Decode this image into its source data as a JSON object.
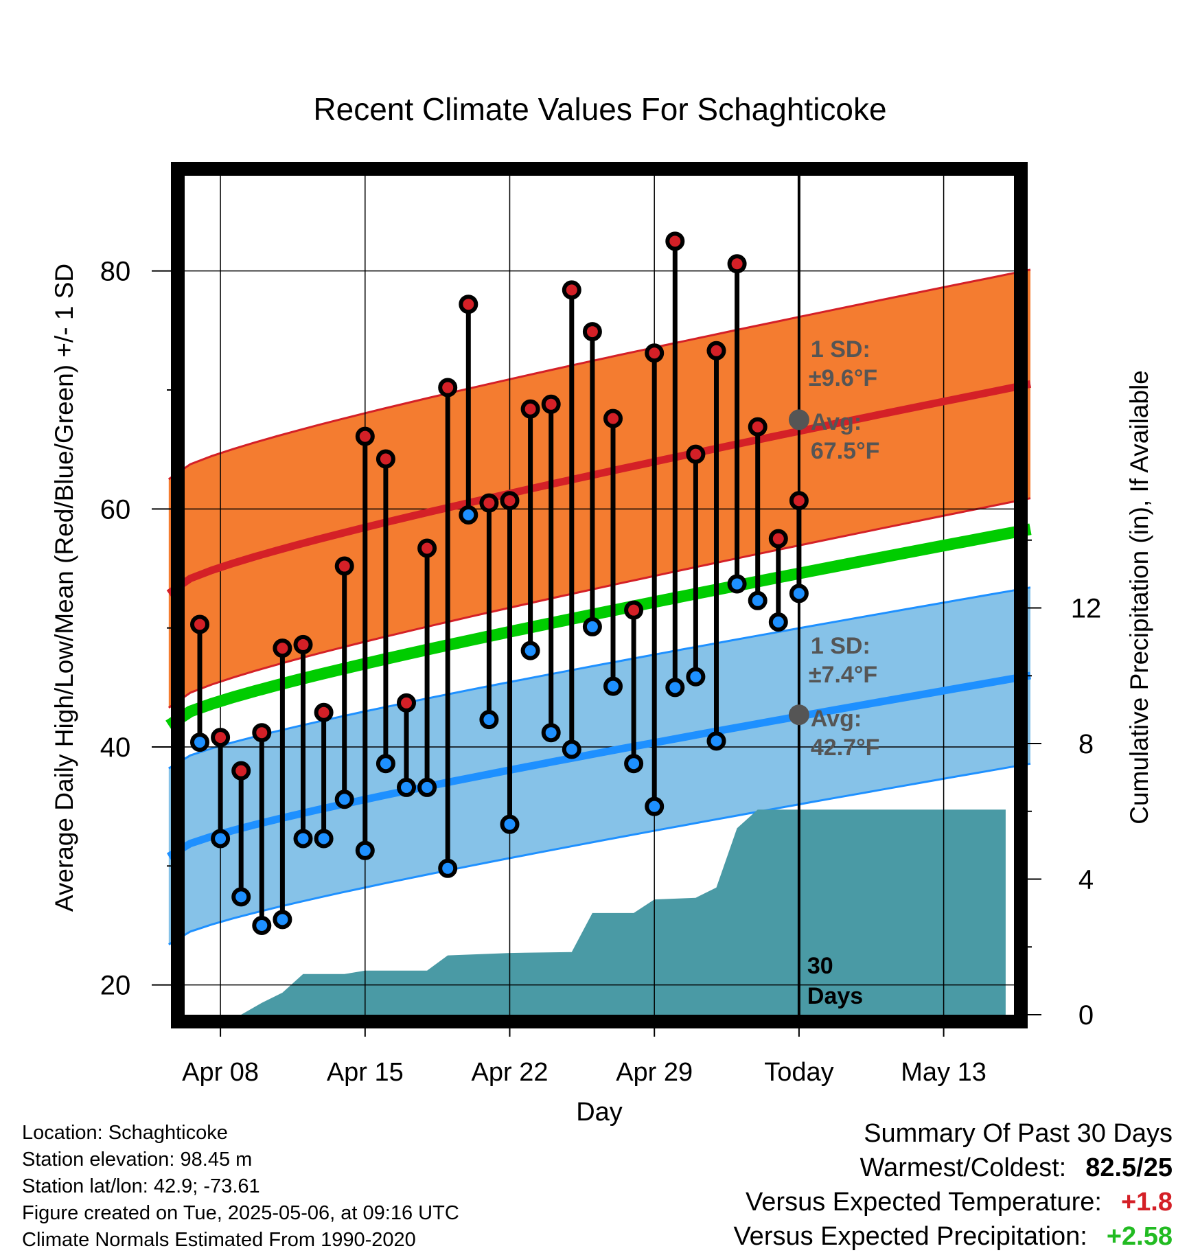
{
  "chart_data": {
    "type": "line",
    "title": "Recent Climate Values For Schaghticoke",
    "xlabel": "Day",
    "ylabel": "Average Daily High/Low/Mean (Red/Blue/Green) +/- 1 SD",
    "y2label": "Cumulative Precipitation (in), If Available",
    "x_ticks": [
      "Apr 08",
      "Apr 15",
      "Apr 22",
      "Apr 29",
      "Today",
      "May 13"
    ],
    "y_ticks": [
      "20",
      "40",
      "60",
      "80"
    ],
    "y2_ticks": [
      "0",
      "4",
      "8",
      "12"
    ],
    "ylim": [
      17.5,
      88
    ],
    "y2lim": [
      0,
      24.75
    ],
    "dates": [
      "Apr 07",
      "Apr 08",
      "Apr 09",
      "Apr 10",
      "Apr 11",
      "Apr 12",
      "Apr 13",
      "Apr 14",
      "Apr 15",
      "Apr 16",
      "Apr 17",
      "Apr 18",
      "Apr 19",
      "Apr 20",
      "Apr 21",
      "Apr 22",
      "Apr 23",
      "Apr 24",
      "Apr 25",
      "Apr 26",
      "Apr 27",
      "Apr 28",
      "Apr 29",
      "Apr 30",
      "May 01",
      "May 02",
      "May 03",
      "May 04",
      "May 05",
      "May 06"
    ],
    "daily_high": [
      50.3,
      40.8,
      38.0,
      41.2,
      48.3,
      48.6,
      42.9,
      55.2,
      66.1,
      64.2,
      43.7,
      56.7,
      70.2,
      77.2,
      60.5,
      60.7,
      68.4,
      68.8,
      78.4,
      74.9,
      67.6,
      51.5,
      73.1,
      82.5,
      64.6,
      73.3,
      80.6,
      66.9,
      57.5,
      60.7
    ],
    "daily_low": [
      40.4,
      32.3,
      27.4,
      25.0,
      25.5,
      32.3,
      32.3,
      35.6,
      31.3,
      38.6,
      36.6,
      36.6,
      29.8,
      59.5,
      42.3,
      33.5,
      48.1,
      41.2,
      39.8,
      50.1,
      45.1,
      38.6,
      35.0,
      45.0,
      45.9,
      40.5,
      53.7,
      52.3,
      50.5,
      52.9
    ],
    "normal_high_avg": [
      52.9,
      70.5
    ],
    "normal_high_sd": 9.6,
    "normal_low_avg": [
      30.8,
      46.0
    ],
    "normal_low_sd": 7.4,
    "normal_mean": [
      41.8,
      58.3
    ],
    "today_high_avg": 67.5,
    "today_low_avg": 42.7,
    "precip_dates": [
      "Apr 09",
      "Apr 10",
      "Apr 11",
      "Apr 12",
      "Apr 13",
      "Apr 14",
      "Apr 15",
      "Apr 18",
      "Apr 19",
      "Apr 22",
      "Apr 25",
      "Apr 26",
      "Apr 28",
      "Apr 29",
      "May 01",
      "May 02",
      "May 03",
      "May 04",
      "May 05",
      "May 06",
      "May 16"
    ],
    "precip_cumulative": [
      0.0,
      0.35,
      0.65,
      1.2,
      1.2,
      1.2,
      1.3,
      1.3,
      1.75,
      1.82,
      1.85,
      3.0,
      3.0,
      3.4,
      3.45,
      3.75,
      5.5,
      6.05,
      6.05,
      6.05,
      6.05
    ],
    "annotations": {
      "high_sd": "1 SD:",
      "high_sd_val": "±9.6°F",
      "high_avg": "Avg:",
      "high_avg_val": "67.5°F",
      "low_sd": "1 SD:",
      "low_sd_val": "±7.4°F",
      "low_avg": "Avg:",
      "low_avg_val": "42.7°F",
      "days_num": "30",
      "days_word": "Days"
    },
    "colors": {
      "high_band": "#f47c30",
      "high_line": "#d42027",
      "low_band": "#86c2e8",
      "low_line": "#1e90ff",
      "mean_line": "#00cc00",
      "precip": "#4a9aa5",
      "high_dot": "#d42027",
      "low_dot": "#1e90ff",
      "annotation": "#555555"
    }
  },
  "info": {
    "location": "Location: Schaghticoke",
    "elevation": "Station elevation: 98.45 m",
    "latlon": "Station lat/lon: 42.9; -73.61",
    "created": "Figure created on Tue, 2025-05-06, at 09:16 UTC",
    "normals": "Climate Normals Estimated From 1990-2020"
  },
  "summary": {
    "title": "Summary Of Past 30 Days",
    "warmest_label": "Warmest/Coldest:",
    "warmest_value": "82.5/25",
    "temp_label": "Versus Expected Temperature:",
    "temp_value": "+1.8",
    "temp_color": "#d42027",
    "precip_label": "Versus Expected Precipitation:",
    "precip_value": "+2.58",
    "precip_color": "#22bb22"
  }
}
